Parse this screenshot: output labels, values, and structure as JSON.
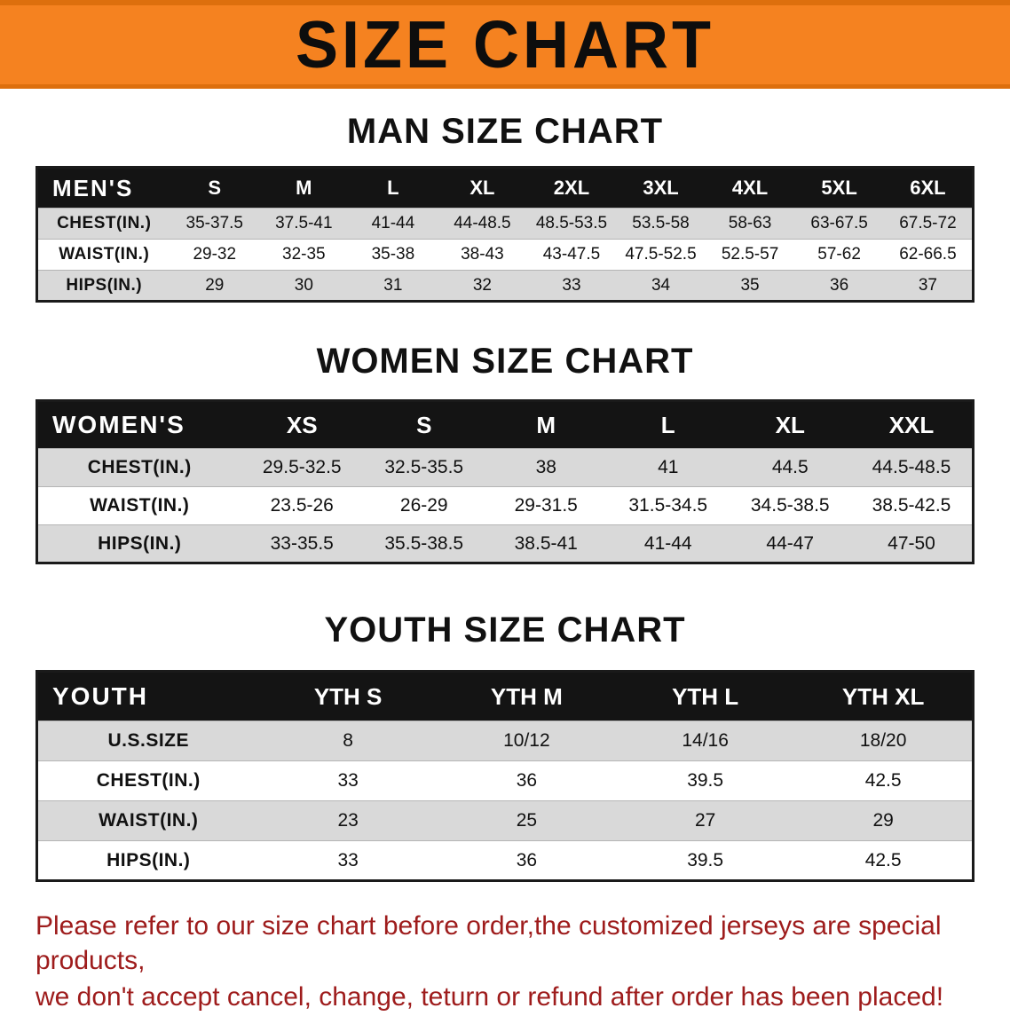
{
  "colors": {
    "banner_bg": "#f58220",
    "banner_edge": "#dd6f0d",
    "header_bg": "#141414",
    "shaded_row": "#d9d9d9",
    "disclaimer_red": "#9e1c1c"
  },
  "banner": {
    "title": "SIZE CHART"
  },
  "sections": [
    {
      "heading": "MAN SIZE CHART",
      "table": {
        "title": "MEN'S",
        "columns": [
          "S",
          "M",
          "L",
          "XL",
          "2XL",
          "3XL",
          "4XL",
          "5XL",
          "6XL"
        ],
        "rows": [
          {
            "label": "CHEST(IN.)",
            "values": [
              "35-37.5",
              "37.5-41",
              "41-44",
              "44-48.5",
              "48.5-53.5",
              "53.5-58",
              "58-63",
              "63-67.5",
              "67.5-72"
            ]
          },
          {
            "label": "WAIST(IN.)",
            "values": [
              "29-32",
              "32-35",
              "35-38",
              "38-43",
              "43-47.5",
              "47.5-52.5",
              "52.5-57",
              "57-62",
              "62-66.5"
            ]
          },
          {
            "label": "HIPS(IN.)",
            "values": [
              "29",
              "30",
              "31",
              "32",
              "33",
              "34",
              "35",
              "36",
              "37"
            ]
          }
        ]
      }
    },
    {
      "heading": "WOMEN SIZE CHART",
      "table": {
        "title": "WOMEN'S",
        "columns": [
          "XS",
          "S",
          "M",
          "L",
          "XL",
          "XXL"
        ],
        "rows": [
          {
            "label": "CHEST(IN.)",
            "values": [
              "29.5-32.5",
              "32.5-35.5",
              "38",
              "41",
              "44.5",
              "44.5-48.5"
            ]
          },
          {
            "label": "WAIST(IN.)",
            "values": [
              "23.5-26",
              "26-29",
              "29-31.5",
              "31.5-34.5",
              "34.5-38.5",
              "38.5-42.5"
            ]
          },
          {
            "label": "HIPS(IN.)",
            "values": [
              "33-35.5",
              "35.5-38.5",
              "38.5-41",
              "41-44",
              "44-47",
              "47-50"
            ]
          }
        ]
      }
    },
    {
      "heading": "YOUTH SIZE CHART",
      "table": {
        "title": "YOUTH",
        "columns": [
          "YTH S",
          "YTH M",
          "YTH L",
          "YTH XL"
        ],
        "rows": [
          {
            "label": "U.S.SIZE",
            "values": [
              "8",
              "10/12",
              "14/16",
              "18/20"
            ]
          },
          {
            "label": "CHEST(IN.)",
            "values": [
              "33",
              "36",
              "39.5",
              "42.5"
            ]
          },
          {
            "label": "WAIST(IN.)",
            "values": [
              "23",
              "25",
              "27",
              "29"
            ]
          },
          {
            "label": "HIPS(IN.)",
            "values": [
              "33",
              "36",
              "39.5",
              "42.5"
            ]
          }
        ]
      }
    }
  ],
  "disclaimer": {
    "lines": [
      "Please refer to our size chart before order,the customized jerseys are special products,",
      "we don't accept cancel, change, teturn or refund after order has been placed!"
    ]
  }
}
